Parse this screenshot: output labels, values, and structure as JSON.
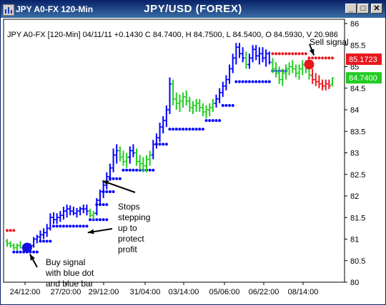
{
  "window": {
    "title_small": "JPY A0-FX 120-Min",
    "title": "JPY/USD (FOREX)",
    "buttons": [
      "_",
      "□",
      "✕"
    ]
  },
  "chart_data": {
    "type": "bar",
    "info_line": "JPY A0-FX [120-Min] 04/11/11  +0.1430 C 84.7400, H 84.7500, L 84.5400, O 84.5930, V 20.986",
    "ylim": [
      80,
      86
    ],
    "y_ticks": [
      "80",
      "80.5",
      "81",
      "81.5",
      "82",
      "82.5",
      "83",
      "83.5",
      "84",
      "84.5",
      "85",
      "85.5",
      "86"
    ],
    "x_ticks": [
      "24/12:00",
      "27/20:00",
      "29/12:00",
      "31/04:00",
      "03/14:00",
      "05/06:00",
      "06/22:00",
      "08/14:00"
    ],
    "price_labels": [
      {
        "text": "85.1723",
        "value": 85.1723,
        "color": "#e8171d"
      },
      {
        "text": "84.7400",
        "value": 84.74,
        "color": "#22cc22"
      }
    ],
    "colors": {
      "up": "#0000ff",
      "neutral": "#22cc22",
      "down": "#e8171d",
      "frame": "#000000"
    },
    "series": [
      {
        "x": 0,
        "open": 80.95,
        "high": 81.0,
        "low": 80.82,
        "close": 80.9,
        "color": "green"
      },
      {
        "x": 1,
        "open": 80.9,
        "high": 80.95,
        "low": 80.8,
        "close": 80.85,
        "color": "green"
      },
      {
        "x": 2,
        "open": 80.85,
        "high": 80.9,
        "low": 80.75,
        "close": 80.8,
        "color": "green"
      },
      {
        "x": 3,
        "open": 80.8,
        "high": 80.9,
        "low": 80.72,
        "close": 80.85,
        "color": "green"
      },
      {
        "x": 4,
        "open": 80.85,
        "high": 80.95,
        "low": 80.78,
        "close": 80.8,
        "color": "green"
      },
      {
        "x": 5,
        "open": 80.8,
        "high": 80.88,
        "low": 80.72,
        "close": 80.85,
        "color": "green"
      },
      {
        "x": 6,
        "open": 80.8,
        "high": 80.86,
        "low": 80.68,
        "close": 80.75,
        "color": "blue"
      },
      {
        "x": 7,
        "open": 80.75,
        "high": 80.9,
        "low": 80.7,
        "close": 80.85,
        "color": "blue"
      },
      {
        "x": 8,
        "open": 80.85,
        "high": 81.05,
        "low": 80.8,
        "close": 81.0,
        "color": "blue"
      },
      {
        "x": 9,
        "open": 81.0,
        "high": 81.1,
        "low": 80.9,
        "close": 81.05,
        "color": "blue"
      },
      {
        "x": 10,
        "open": 81.05,
        "high": 81.2,
        "low": 80.95,
        "close": 81.1,
        "color": "blue"
      },
      {
        "x": 11,
        "open": 81.1,
        "high": 81.25,
        "low": 81.0,
        "close": 81.15,
        "color": "blue"
      },
      {
        "x": 12,
        "open": 81.15,
        "high": 81.35,
        "low": 81.05,
        "close": 81.25,
        "color": "blue"
      },
      {
        "x": 13,
        "open": 81.25,
        "high": 81.6,
        "low": 81.2,
        "close": 81.5,
        "color": "blue"
      },
      {
        "x": 14,
        "open": 81.5,
        "high": 81.62,
        "low": 81.35,
        "close": 81.45,
        "color": "blue"
      },
      {
        "x": 15,
        "open": 81.45,
        "high": 81.6,
        "low": 81.35,
        "close": 81.5,
        "color": "blue"
      },
      {
        "x": 16,
        "open": 81.5,
        "high": 81.65,
        "low": 81.4,
        "close": 81.55,
        "color": "blue"
      },
      {
        "x": 17,
        "open": 81.55,
        "high": 81.75,
        "low": 81.45,
        "close": 81.65,
        "color": "blue"
      },
      {
        "x": 18,
        "open": 81.65,
        "high": 81.8,
        "low": 81.5,
        "close": 81.7,
        "color": "blue"
      },
      {
        "x": 19,
        "open": 81.7,
        "high": 81.78,
        "low": 81.55,
        "close": 81.65,
        "color": "blue"
      },
      {
        "x": 20,
        "open": 81.65,
        "high": 81.75,
        "low": 81.55,
        "close": 81.6,
        "color": "blue"
      },
      {
        "x": 21,
        "open": 81.6,
        "high": 81.72,
        "low": 81.5,
        "close": 81.65,
        "color": "blue"
      },
      {
        "x": 22,
        "open": 81.65,
        "high": 81.75,
        "low": 81.55,
        "close": 81.7,
        "color": "blue"
      },
      {
        "x": 23,
        "open": 81.7,
        "high": 81.8,
        "low": 81.6,
        "close": 81.7,
        "color": "blue"
      },
      {
        "x": 24,
        "open": 81.7,
        "high": 81.8,
        "low": 81.55,
        "close": 81.65,
        "color": "blue"
      },
      {
        "x": 25,
        "open": 81.65,
        "high": 81.7,
        "low": 81.5,
        "close": 81.55,
        "color": "green"
      },
      {
        "x": 26,
        "open": 81.55,
        "high": 81.65,
        "low": 81.45,
        "close": 81.6,
        "color": "green"
      },
      {
        "x": 27,
        "open": 81.6,
        "high": 81.95,
        "low": 81.55,
        "close": 81.9,
        "color": "blue"
      },
      {
        "x": 28,
        "open": 81.9,
        "high": 82.15,
        "low": 81.8,
        "close": 82.1,
        "color": "blue"
      },
      {
        "x": 29,
        "open": 82.1,
        "high": 82.35,
        "low": 81.95,
        "close": 82.25,
        "color": "blue"
      },
      {
        "x": 30,
        "open": 82.25,
        "high": 82.55,
        "low": 82.15,
        "close": 82.45,
        "color": "blue"
      },
      {
        "x": 31,
        "open": 82.45,
        "high": 82.75,
        "low": 82.35,
        "close": 82.65,
        "color": "blue"
      },
      {
        "x": 32,
        "open": 82.65,
        "high": 83.1,
        "low": 82.55,
        "close": 82.95,
        "color": "blue"
      },
      {
        "x": 33,
        "open": 82.95,
        "high": 83.2,
        "low": 82.75,
        "close": 83.05,
        "color": "blue"
      },
      {
        "x": 34,
        "open": 83.05,
        "high": 83.15,
        "low": 82.8,
        "close": 82.9,
        "color": "green"
      },
      {
        "x": 35,
        "open": 82.9,
        "high": 83.05,
        "low": 82.7,
        "close": 82.8,
        "color": "green"
      },
      {
        "x": 36,
        "open": 82.8,
        "high": 83.0,
        "low": 82.65,
        "close": 82.9,
        "color": "green"
      },
      {
        "x": 37,
        "open": 82.9,
        "high": 83.15,
        "low": 82.75,
        "close": 83.05,
        "color": "blue"
      },
      {
        "x": 38,
        "open": 83.05,
        "high": 83.2,
        "low": 82.9,
        "close": 83.0,
        "color": "blue"
      },
      {
        "x": 39,
        "open": 83.0,
        "high": 83.1,
        "low": 82.7,
        "close": 82.8,
        "color": "green"
      },
      {
        "x": 40,
        "open": 82.8,
        "high": 82.95,
        "low": 82.6,
        "close": 82.75,
        "color": "green"
      },
      {
        "x": 41,
        "open": 82.75,
        "high": 82.9,
        "low": 82.55,
        "close": 82.7,
        "color": "green"
      },
      {
        "x": 42,
        "open": 82.7,
        "high": 82.95,
        "low": 82.55,
        "close": 82.85,
        "color": "green"
      },
      {
        "x": 43,
        "open": 82.85,
        "high": 83.05,
        "low": 82.7,
        "close": 82.95,
        "color": "green"
      },
      {
        "x": 44,
        "open": 82.95,
        "high": 83.3,
        "low": 82.85,
        "close": 83.2,
        "color": "blue"
      },
      {
        "x": 45,
        "open": 83.2,
        "high": 83.45,
        "low": 83.1,
        "close": 83.35,
        "color": "blue"
      },
      {
        "x": 46,
        "open": 83.35,
        "high": 83.7,
        "low": 83.25,
        "close": 83.6,
        "color": "blue"
      },
      {
        "x": 47,
        "open": 83.6,
        "high": 83.85,
        "low": 83.45,
        "close": 83.75,
        "color": "blue"
      },
      {
        "x": 48,
        "open": 83.75,
        "high": 84.1,
        "low": 83.6,
        "close": 84.0,
        "color": "blue"
      },
      {
        "x": 49,
        "open": 84.0,
        "high": 84.75,
        "low": 83.9,
        "close": 84.6,
        "color": "blue"
      },
      {
        "x": 50,
        "open": 84.6,
        "high": 84.7,
        "low": 84.1,
        "close": 84.25,
        "color": "green"
      },
      {
        "x": 51,
        "open": 84.25,
        "high": 84.4,
        "low": 84.0,
        "close": 84.15,
        "color": "green"
      },
      {
        "x": 52,
        "open": 84.15,
        "high": 84.35,
        "low": 83.95,
        "close": 84.2,
        "color": "green"
      },
      {
        "x": 53,
        "open": 84.2,
        "high": 84.4,
        "low": 84.05,
        "close": 84.3,
        "color": "green"
      },
      {
        "x": 54,
        "open": 84.3,
        "high": 84.45,
        "low": 84.1,
        "close": 84.2,
        "color": "green"
      },
      {
        "x": 55,
        "open": 84.2,
        "high": 84.3,
        "low": 83.95,
        "close": 84.05,
        "color": "green"
      },
      {
        "x": 56,
        "open": 84.05,
        "high": 84.2,
        "low": 83.9,
        "close": 84.1,
        "color": "green"
      },
      {
        "x": 57,
        "open": 84.1,
        "high": 84.25,
        "low": 83.95,
        "close": 84.15,
        "color": "green"
      },
      {
        "x": 58,
        "open": 84.15,
        "high": 84.25,
        "low": 83.95,
        "close": 84.05,
        "color": "green"
      },
      {
        "x": 59,
        "open": 84.05,
        "high": 84.15,
        "low": 83.85,
        "close": 83.95,
        "color": "green"
      },
      {
        "x": 60,
        "open": 83.95,
        "high": 84.1,
        "low": 83.8,
        "close": 84.0,
        "color": "green"
      },
      {
        "x": 61,
        "open": 84.0,
        "high": 84.15,
        "low": 83.85,
        "close": 84.05,
        "color": "green"
      },
      {
        "x": 62,
        "open": 84.05,
        "high": 84.25,
        "low": 83.95,
        "close": 84.15,
        "color": "green"
      },
      {
        "x": 63,
        "open": 84.15,
        "high": 84.35,
        "low": 84.05,
        "close": 84.25,
        "color": "blue"
      },
      {
        "x": 64,
        "open": 84.25,
        "high": 84.5,
        "low": 84.15,
        "close": 84.4,
        "color": "blue"
      },
      {
        "x": 65,
        "open": 84.4,
        "high": 84.65,
        "low": 84.3,
        "close": 84.55,
        "color": "blue"
      },
      {
        "x": 66,
        "open": 84.55,
        "high": 84.8,
        "low": 84.45,
        "close": 84.7,
        "color": "blue"
      },
      {
        "x": 67,
        "open": 84.7,
        "high": 85.05,
        "low": 84.6,
        "close": 84.95,
        "color": "blue"
      },
      {
        "x": 68,
        "open": 84.95,
        "high": 85.3,
        "low": 84.85,
        "close": 85.2,
        "color": "blue"
      },
      {
        "x": 69,
        "open": 85.2,
        "high": 85.55,
        "low": 85.05,
        "close": 85.45,
        "color": "blue"
      },
      {
        "x": 70,
        "open": 85.45,
        "high": 85.55,
        "low": 85.2,
        "close": 85.3,
        "color": "blue"
      },
      {
        "x": 71,
        "open": 85.3,
        "high": 85.45,
        "low": 85.1,
        "close": 85.2,
        "color": "blue"
      },
      {
        "x": 72,
        "open": 85.2,
        "high": 85.35,
        "low": 84.95,
        "close": 85.05,
        "color": "green"
      },
      {
        "x": 73,
        "open": 85.05,
        "high": 85.3,
        "low": 84.95,
        "close": 85.2,
        "color": "blue"
      },
      {
        "x": 74,
        "open": 85.2,
        "high": 85.5,
        "low": 85.1,
        "close": 85.4,
        "color": "blue"
      },
      {
        "x": 75,
        "open": 85.4,
        "high": 85.5,
        "low": 85.15,
        "close": 85.25,
        "color": "blue"
      },
      {
        "x": 76,
        "open": 85.25,
        "high": 85.45,
        "low": 85.05,
        "close": 85.3,
        "color": "blue"
      },
      {
        "x": 77,
        "open": 85.3,
        "high": 85.45,
        "low": 85.1,
        "close": 85.2,
        "color": "blue"
      },
      {
        "x": 78,
        "open": 85.2,
        "high": 85.4,
        "low": 85.0,
        "close": 85.3,
        "color": "blue"
      },
      {
        "x": 79,
        "open": 85.3,
        "high": 85.35,
        "low": 85.05,
        "close": 85.1,
        "color": "blue"
      },
      {
        "x": 80,
        "open": 85.1,
        "high": 85.2,
        "low": 84.85,
        "close": 84.95,
        "color": "green"
      },
      {
        "x": 81,
        "open": 84.95,
        "high": 85.1,
        "low": 84.75,
        "close": 84.85,
        "color": "green"
      },
      {
        "x": 82,
        "open": 84.85,
        "high": 85.0,
        "low": 84.6,
        "close": 84.7,
        "color": "green"
      },
      {
        "x": 83,
        "open": 84.7,
        "high": 84.95,
        "low": 84.55,
        "close": 84.85,
        "color": "green"
      },
      {
        "x": 84,
        "open": 84.85,
        "high": 85.05,
        "low": 84.7,
        "close": 84.95,
        "color": "green"
      },
      {
        "x": 85,
        "open": 84.95,
        "high": 85.1,
        "low": 84.8,
        "close": 85.0,
        "color": "green"
      },
      {
        "x": 86,
        "open": 85.0,
        "high": 85.15,
        "low": 84.85,
        "close": 84.95,
        "color": "green"
      },
      {
        "x": 87,
        "open": 84.95,
        "high": 85.05,
        "low": 84.75,
        "close": 84.85,
        "color": "green"
      },
      {
        "x": 88,
        "open": 84.85,
        "high": 85.05,
        "low": 84.7,
        "close": 84.95,
        "color": "green"
      },
      {
        "x": 89,
        "open": 84.95,
        "high": 85.15,
        "low": 84.8,
        "close": 85.05,
        "color": "green"
      },
      {
        "x": 90,
        "open": 85.05,
        "high": 85.15,
        "low": 84.85,
        "close": 84.95,
        "color": "green"
      },
      {
        "x": 91,
        "open": 84.95,
        "high": 85.1,
        "low": 84.7,
        "close": 84.8,
        "color": "green"
      },
      {
        "x": 92,
        "open": 84.8,
        "high": 84.95,
        "low": 84.6,
        "close": 84.7,
        "color": "red"
      },
      {
        "x": 93,
        "open": 84.7,
        "high": 84.85,
        "low": 84.55,
        "close": 84.65,
        "color": "red"
      },
      {
        "x": 94,
        "open": 84.65,
        "high": 84.8,
        "low": 84.5,
        "close": 84.6,
        "color": "red"
      },
      {
        "x": 95,
        "open": 84.6,
        "high": 84.7,
        "low": 84.45,
        "close": 84.55,
        "color": "red"
      },
      {
        "x": 96,
        "open": 84.55,
        "high": 84.7,
        "low": 84.45,
        "close": 84.6,
        "color": "red"
      },
      {
        "x": 97,
        "open": 84.6,
        "high": 84.7,
        "low": 84.48,
        "close": 84.55,
        "color": "red"
      },
      {
        "x": 98,
        "open": 84.59,
        "high": 84.75,
        "low": 84.54,
        "close": 84.74,
        "color": "green"
      }
    ],
    "stops": [
      {
        "color": "red",
        "x_from": 0,
        "x_to": 2,
        "value": 81.2
      },
      {
        "color": "blue",
        "x_from": 2,
        "x_to": 9,
        "value": 80.7
      },
      {
        "color": "blue",
        "x_from": 10,
        "x_to": 13,
        "value": 80.95
      },
      {
        "color": "blue",
        "x_from": 14,
        "x_to": 24,
        "value": 81.3
      },
      {
        "color": "blue",
        "x_from": 25,
        "x_to": 30,
        "value": 81.45
      },
      {
        "color": "blue",
        "x_from": 27,
        "x_to": 30,
        "value": 81.8
      },
      {
        "color": "blue",
        "x_from": 29,
        "x_to": 32,
        "value": 82.1
      },
      {
        "color": "blue",
        "x_from": 31,
        "x_to": 34,
        "value": 82.4
      },
      {
        "color": "blue",
        "x_from": 35,
        "x_to": 44,
        "value": 82.6
      },
      {
        "color": "blue",
        "x_from": 45,
        "x_to": 48,
        "value": 83.2
      },
      {
        "color": "blue",
        "x_from": 49,
        "x_to": 59,
        "value": 83.55
      },
      {
        "color": "blue",
        "x_from": 60,
        "x_to": 64,
        "value": 83.75
      },
      {
        "color": "blue",
        "x_from": 65,
        "x_to": 68,
        "value": 84.1
      },
      {
        "color": "blue",
        "x_from": 69,
        "x_to": 79,
        "value": 84.65
      },
      {
        "color": "blue",
        "x_from": 80,
        "x_to": 84,
        "value": 84.9
      },
      {
        "color": "red",
        "x_from": 80,
        "x_to": 90,
        "value": 85.3
      },
      {
        "color": "red",
        "x_from": 91,
        "x_to": 98,
        "value": 85.2
      }
    ],
    "signals": [
      {
        "type": "buy",
        "x": 6,
        "value": 80.8,
        "color": "#1010e0"
      },
      {
        "type": "sell",
        "x": 91,
        "value": 85.05,
        "color": "#e8171d"
      }
    ],
    "annotations": [
      {
        "lines": [
          "Buy signal",
          "with blue dot",
          "and blue bar"
        ],
        "arrow_to_x": 6,
        "arrow_to_value": 80.75
      },
      {
        "lines": [
          "Stops",
          "stepping",
          "up to",
          "protect",
          "profit"
        ],
        "arrow_to_x": 27,
        "arrow_to_value": 82.45
      },
      {
        "lines": [
          "Sell signal"
        ],
        "arrow_to_x": 92,
        "arrow_to_value": 85.1
      }
    ],
    "annotation_stop_arrow_2": {
      "arrow_to_x": 23,
      "arrow_to_value": 81.25
    }
  }
}
